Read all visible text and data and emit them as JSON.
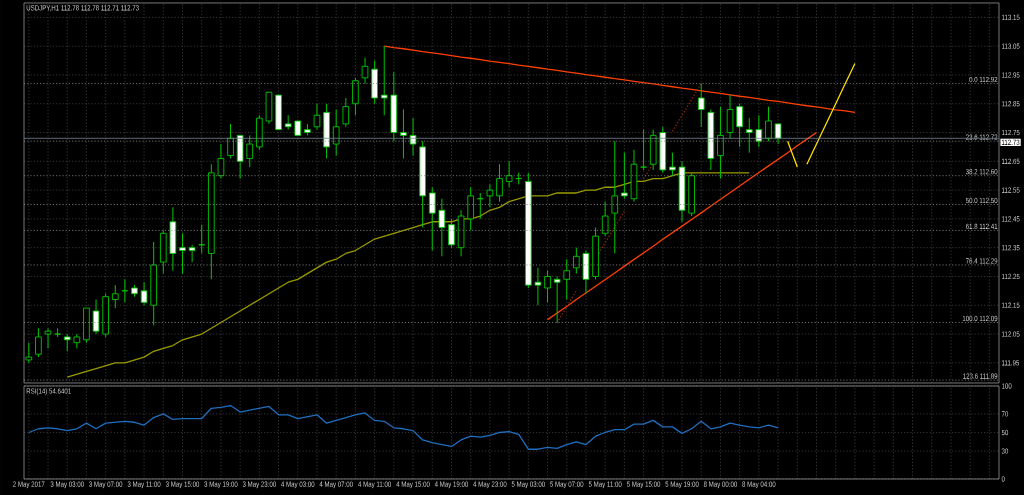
{
  "chart_data": [
    {
      "type": "candlestick",
      "title": "USDJPY,H1  112.78 112.78 112.71 112.73",
      "categories": [
        null,
        null,
        null,
        null,
        null,
        null,
        null,
        null,
        null,
        null,
        null,
        null,
        null,
        null,
        null,
        null,
        null,
        null,
        null,
        null,
        null,
        null,
        null,
        null,
        null,
        null,
        null,
        null,
        null,
        null,
        null,
        null,
        null,
        null,
        null,
        null,
        null,
        null,
        null,
        null,
        null,
        null,
        null,
        null,
        null,
        null,
        null,
        null,
        null,
        null,
        null,
        null,
        null,
        null,
        null,
        null,
        null,
        null,
        null,
        null,
        null,
        null,
        null,
        null,
        null,
        null,
        null,
        null,
        null,
        null,
        null,
        null,
        null,
        null,
        null,
        null,
        null,
        null,
        null,
        null,
        null,
        null,
        null,
        null,
        null,
        null,
        null,
        null,
        null,
        null,
        null,
        null,
        null,
        null,
        null,
        null,
        null,
        null,
        null,
        null,
        null,
        null
      ],
      "ohlc": [
        [
          111.96,
          112.02,
          111.95,
          111.97
        ],
        [
          111.98,
          112.07,
          111.97,
          112.04
        ],
        [
          112.05,
          112.07,
          112.0,
          112.06
        ],
        [
          112.05,
          112.07,
          112.04,
          112.05
        ],
        [
          112.04,
          112.05,
          111.99,
          112.03
        ],
        [
          112.02,
          112.05,
          112.0,
          112.04
        ],
        [
          112.03,
          112.14,
          112.02,
          112.14
        ],
        [
          112.13,
          112.17,
          112.05,
          112.06
        ],
        [
          112.05,
          112.19,
          112.04,
          112.18
        ],
        [
          112.17,
          112.22,
          112.14,
          112.19
        ],
        [
          112.2,
          112.24,
          112.16,
          112.2
        ],
        [
          112.21,
          112.22,
          112.18,
          112.19
        ],
        [
          112.2,
          112.23,
          112.15,
          112.16
        ],
        [
          112.15,
          112.37,
          112.08,
          112.29
        ],
        [
          112.3,
          112.41,
          112.26,
          112.4
        ],
        [
          112.44,
          112.49,
          112.27,
          112.33
        ],
        [
          112.35,
          112.4,
          112.26,
          112.34
        ],
        [
          112.35,
          112.36,
          112.3,
          112.34
        ],
        [
          112.36,
          112.43,
          112.33,
          112.36
        ],
        [
          112.33,
          112.64,
          112.24,
          112.61
        ],
        [
          112.6,
          112.71,
          112.59,
          112.66
        ],
        [
          112.67,
          112.78,
          112.66,
          112.73
        ],
        [
          112.74,
          112.74,
          112.59,
          112.65
        ],
        [
          112.66,
          112.74,
          112.63,
          112.71
        ],
        [
          112.7,
          112.81,
          112.69,
          112.8
        ],
        [
          112.79,
          112.89,
          112.78,
          112.89
        ],
        [
          112.88,
          112.88,
          112.76,
          112.76
        ],
        [
          112.78,
          112.81,
          112.76,
          112.77
        ],
        [
          112.79,
          112.79,
          112.74,
          112.74
        ],
        [
          112.76,
          112.78,
          112.74,
          112.75
        ],
        [
          112.77,
          112.85,
          112.76,
          112.81
        ],
        [
          112.82,
          112.85,
          112.66,
          112.7
        ],
        [
          112.71,
          112.83,
          112.67,
          112.77
        ],
        [
          112.78,
          112.87,
          112.77,
          112.84
        ],
        [
          112.85,
          112.94,
          112.81,
          112.93
        ],
        [
          112.94,
          113.01,
          112.92,
          112.98
        ],
        [
          112.97,
          113.0,
          112.85,
          112.87
        ],
        [
          112.88,
          113.05,
          112.81,
          112.87
        ],
        [
          112.88,
          112.96,
          112.72,
          112.75
        ],
        [
          112.75,
          112.83,
          112.66,
          112.74
        ],
        [
          112.74,
          112.8,
          112.67,
          112.71
        ],
        [
          112.7,
          112.72,
          112.42,
          112.53
        ],
        [
          112.54,
          112.56,
          112.34,
          112.47
        ],
        [
          112.48,
          112.52,
          112.32,
          112.42
        ],
        [
          112.43,
          112.45,
          112.35,
          112.36
        ],
        [
          112.35,
          112.48,
          112.32,
          112.46
        ],
        [
          112.45,
          112.56,
          112.41,
          112.53
        ],
        [
          112.52,
          112.54,
          112.45,
          112.52
        ],
        [
          112.53,
          112.57,
          112.49,
          112.55
        ],
        [
          112.53,
          112.64,
          112.51,
          112.59
        ],
        [
          112.58,
          112.65,
          112.56,
          112.6
        ],
        [
          112.59,
          112.61,
          112.57,
          112.59
        ],
        [
          112.58,
          112.61,
          112.21,
          112.22
        ],
        [
          112.23,
          112.28,
          112.15,
          112.22
        ],
        [
          112.21,
          112.27,
          112.16,
          112.25
        ],
        [
          112.24,
          112.25,
          112.09,
          112.23
        ],
        [
          112.24,
          112.31,
          112.17,
          112.27
        ],
        [
          112.28,
          112.35,
          112.26,
          112.32
        ],
        [
          112.33,
          112.34,
          112.19,
          112.24
        ],
        [
          112.25,
          112.42,
          112.24,
          112.39
        ],
        [
          112.4,
          112.51,
          112.39,
          112.46
        ],
        [
          112.47,
          112.72,
          112.33,
          112.53
        ],
        [
          112.54,
          112.68,
          112.52,
          112.53
        ],
        [
          112.52,
          112.69,
          112.51,
          112.64
        ],
        [
          112.63,
          112.76,
          112.62,
          112.63
        ],
        [
          112.64,
          112.76,
          112.62,
          112.74
        ],
        [
          112.75,
          112.77,
          112.61,
          112.62
        ],
        [
          112.63,
          112.68,
          112.6,
          112.62
        ],
        [
          112.63,
          112.65,
          112.44,
          112.48
        ],
        [
          112.47,
          112.61,
          112.46,
          112.6
        ],
        [
          112.87,
          112.92,
          112.77,
          112.83
        ],
        [
          112.82,
          112.83,
          112.62,
          112.66
        ],
        [
          112.67,
          112.84,
          112.59,
          112.74
        ],
        [
          112.75,
          112.88,
          112.73,
          112.83
        ],
        [
          112.84,
          112.85,
          112.7,
          112.77
        ],
        [
          112.76,
          112.8,
          112.68,
          112.75
        ],
        [
          112.76,
          112.81,
          112.7,
          112.72
        ],
        [
          112.73,
          112.84,
          112.72,
          112.79
        ],
        [
          112.78,
          112.78,
          112.71,
          112.73
        ],
        null,
        null,
        null,
        null,
        null,
        null,
        null,
        null,
        null,
        null,
        null,
        null,
        null,
        null,
        null,
        null,
        null,
        null,
        null,
        null,
        null,
        null,
        null
      ],
      "series": [
        {
          "type": "line",
          "color": "#9a9a00",
          "values": [
            null,
            null,
            null,
            null,
            111.9,
            111.91,
            111.92,
            111.93,
            111.94,
            111.95,
            111.95,
            111.96,
            111.97,
            111.99,
            112.0,
            112.01,
            112.03,
            112.04,
            112.05,
            112.07,
            112.09,
            112.11,
            112.13,
            112.15,
            112.17,
            112.19,
            112.21,
            112.23,
            112.24,
            112.26,
            112.28,
            112.3,
            112.31,
            112.33,
            112.34,
            112.36,
            112.38,
            112.39,
            112.4,
            112.41,
            112.42,
            112.43,
            112.44,
            112.44,
            112.44,
            112.45,
            112.45,
            112.46,
            112.48,
            112.49,
            112.51,
            112.52,
            112.53,
            112.53,
            112.53,
            112.54,
            112.54,
            112.54,
            112.55,
            112.55,
            112.56,
            112.56,
            112.57,
            112.58,
            112.58,
            112.59,
            112.59,
            112.6,
            112.61,
            112.61,
            112.61,
            112.61,
            112.61,
            112.61,
            112.61,
            112.61,
            null,
            null,
            null,
            null,
            null,
            null,
            null,
            null,
            null,
            null,
            null,
            null,
            null,
            null,
            null,
            null,
            null,
            null,
            null,
            null,
            null,
            null,
            null,
            null,
            null,
            null
          ]
        },
        {
          "type": "line",
          "color": "#ff4000",
          "values": [
            null,
            null,
            null,
            null,
            null,
            null,
            null,
            null,
            null,
            null,
            null,
            null,
            null,
            null,
            null,
            null,
            null,
            null,
            null,
            null,
            null,
            null,
            null,
            null,
            null,
            null,
            null,
            null,
            null,
            null,
            null,
            null,
            null,
            null,
            null,
            null,
            null,
            113.05,
            113.045,
            113.041,
            113.036,
            113.031,
            113.027,
            113.022,
            113.017,
            113.012,
            113.008,
            113.003,
            112.998,
            112.994,
            112.989,
            112.984,
            112.98,
            112.975,
            112.97,
            112.966,
            112.961,
            112.956,
            112.951,
            112.947,
            112.942,
            112.937,
            112.933,
            112.928,
            112.923,
            112.919,
            112.914,
            112.909,
            112.904,
            112.9,
            112.895,
            112.89,
            112.886,
            112.881,
            112.876,
            112.872,
            112.867,
            112.862,
            112.858,
            112.853,
            112.848,
            112.843,
            112.839,
            112.834,
            112.829,
            112.825,
            112.82,
            null,
            null,
            null,
            null,
            null,
            null,
            null,
            null,
            null,
            null,
            null,
            null,
            null,
            null,
            null
          ]
        },
        {
          "type": "line",
          "color": "#ff4000",
          "values": [
            null,
            null,
            null,
            null,
            null,
            null,
            null,
            null,
            null,
            null,
            null,
            null,
            null,
            null,
            null,
            null,
            null,
            null,
            null,
            null,
            null,
            null,
            null,
            null,
            null,
            null,
            null,
            null,
            null,
            null,
            null,
            null,
            null,
            null,
            null,
            null,
            null,
            null,
            null,
            null,
            null,
            null,
            null,
            null,
            null,
            null,
            null,
            null,
            null,
            null,
            null,
            null,
            null,
            null,
            112.1,
            112.123,
            112.146,
            112.17,
            112.193,
            112.216,
            112.239,
            112.262,
            112.286,
            112.309,
            112.332,
            112.355,
            112.379,
            112.402,
            112.425,
            112.448,
            112.471,
            112.495,
            112.518,
            112.541,
            112.564,
            112.588,
            112.611,
            112.634,
            112.657,
            112.68,
            112.704,
            112.727,
            112.75,
            null,
            null,
            null,
            null,
            null,
            null,
            null,
            null,
            null,
            null,
            null,
            null,
            null,
            null,
            null,
            null,
            null,
            null,
            null
          ]
        },
        {
          "type": "line",
          "color": "#ffdd00",
          "values": [
            null,
            null,
            null,
            null,
            null,
            null,
            null,
            null,
            null,
            null,
            null,
            null,
            null,
            null,
            null,
            null,
            null,
            null,
            null,
            null,
            null,
            null,
            null,
            null,
            null,
            null,
            null,
            null,
            null,
            null,
            null,
            null,
            null,
            null,
            null,
            null,
            null,
            null,
            null,
            null,
            null,
            null,
            null,
            null,
            null,
            null,
            null,
            null,
            null,
            null,
            null,
            null,
            null,
            null,
            null,
            null,
            null,
            null,
            null,
            null,
            null,
            null,
            null,
            null,
            null,
            null,
            null,
            null,
            null,
            null,
            null,
            null,
            null,
            null,
            null,
            null,
            null,
            null,
            null,
            112.72,
            112.63,
            null,
            null,
            null,
            null,
            null,
            null,
            null,
            null,
            null,
            null,
            null,
            null,
            null,
            null,
            null,
            null,
            null,
            null,
            null,
            null,
            null
          ]
        },
        {
          "type": "line",
          "color": "#ffdd00",
          "values": [
            null,
            null,
            null,
            null,
            null,
            null,
            null,
            null,
            null,
            null,
            null,
            null,
            null,
            null,
            null,
            null,
            null,
            null,
            null,
            null,
            null,
            null,
            null,
            null,
            null,
            null,
            null,
            null,
            null,
            null,
            null,
            null,
            null,
            null,
            null,
            null,
            null,
            null,
            null,
            null,
            null,
            null,
            null,
            null,
            null,
            null,
            null,
            null,
            null,
            null,
            null,
            null,
            null,
            null,
            null,
            null,
            null,
            null,
            null,
            null,
            null,
            null,
            null,
            null,
            null,
            null,
            null,
            null,
            null,
            null,
            null,
            null,
            null,
            null,
            null,
            null,
            null,
            null,
            null,
            null,
            null,
            112.64,
            112.71,
            112.78,
            112.85,
            112.92,
            112.99,
            null,
            null,
            null,
            null,
            null,
            null,
            null,
            null,
            null,
            null,
            null,
            null,
            null,
            null,
            null
          ]
        },
        {
          "type": "line",
          "color": "#a02800",
          "line_style": "dotted",
          "values": [
            null,
            null,
            null,
            null,
            null,
            null,
            null,
            null,
            null,
            null,
            null,
            null,
            null,
            null,
            null,
            null,
            null,
            null,
            null,
            null,
            null,
            null,
            null,
            null,
            null,
            null,
            null,
            null,
            null,
            null,
            null,
            null,
            null,
            null,
            null,
            null,
            null,
            null,
            null,
            null,
            null,
            null,
            null,
            null,
            null,
            null,
            null,
            null,
            null,
            null,
            null,
            null,
            null,
            null,
            null,
            112.09,
            112.145,
            112.201,
            null,
            112.311,
            112.367,
            112.422,
            112.477,
            null,
            112.588,
            112.643,
            null,
            112.754,
            112.809,
            112.865,
            112.92,
            null,
            null,
            null,
            null,
            null,
            null,
            null,
            null,
            null,
            null,
            null,
            null,
            null,
            null,
            null,
            null,
            null,
            null,
            null,
            null,
            null,
            null,
            null,
            null,
            null,
            null,
            null,
            null,
            null,
            null,
            null
          ]
        }
      ],
      "ylim": [
        111.88,
        113.2
      ],
      "yticks": [
        111.95,
        112.05,
        112.15,
        112.25,
        112.35,
        112.45,
        112.55,
        112.65,
        112.75,
        112.85,
        112.95,
        113.05,
        113.15
      ],
      "ref_lines": [
        {
          "axis": "y",
          "value": 112.92,
          "label": "0.0 112.92",
          "color": "#8c8c8c",
          "line_style": "dotted"
        },
        {
          "axis": "y",
          "value": 112.72,
          "label": "23.6 112.72",
          "color": "#8c8c8c",
          "line_style": "dotted"
        },
        {
          "axis": "y",
          "value": 112.6,
          "label": "38.2 112.60",
          "color": "#8c8c8c",
          "line_style": "dotted"
        },
        {
          "axis": "y",
          "value": 112.5,
          "label": "50.0 112.50",
          "color": "#8c8c8c",
          "line_style": "dotted"
        },
        {
          "axis": "y",
          "value": 112.41,
          "label": "61.8 112.41",
          "color": "#8c8c8c",
          "line_style": "dotted"
        },
        {
          "axis": "y",
          "value": 112.29,
          "label": "76.4 112.29",
          "color": "#8c8c8c",
          "line_style": "dotted"
        },
        {
          "axis": "y",
          "value": 112.09,
          "label": "100.0 112.09",
          "color": "#8c8c8c",
          "line_style": "dotted"
        },
        {
          "axis": "y",
          "value": 111.89,
          "label": "123.6 111.89",
          "color": "#8c8c8c",
          "line_style": "dotted"
        },
        {
          "axis": "y",
          "value": 112.73,
          "label": "112.73",
          "color": "#778899",
          "line_style": "solid"
        }
      ],
      "grid": true
    },
    {
      "type": "line",
      "title": "RSI(14) 54.6401",
      "categories": [
        "2 May 2017",
        null,
        null,
        null,
        "3 May 03:00",
        null,
        null,
        null,
        "3 May 07:00",
        null,
        null,
        null,
        "3 May 11:00",
        null,
        null,
        null,
        "3 May 15:00",
        null,
        null,
        null,
        "3 May 19:00",
        null,
        null,
        null,
        "3 May 23:00",
        null,
        null,
        null,
        "4 May 03:00",
        null,
        null,
        null,
        "4 May 07:00",
        null,
        null,
        null,
        "4 May 11:00",
        null,
        null,
        null,
        "4 May 15:00",
        null,
        null,
        null,
        "4 May 19:00",
        null,
        null,
        null,
        "4 May 23:00",
        null,
        null,
        null,
        "5 May 03:00",
        null,
        null,
        null,
        "5 May 07:00",
        null,
        null,
        null,
        "5 May 11:00",
        null,
        null,
        null,
        "5 May 15:00",
        null,
        null,
        null,
        "5 May 19:00",
        null,
        null,
        null,
        "8 May 00:00",
        null,
        null,
        null,
        "8 May 04:00",
        null,
        null,
        null,
        null,
        null,
        null,
        null,
        null,
        null,
        null,
        null,
        null,
        null,
        null,
        null,
        null,
        null,
        null,
        null,
        null,
        null,
        null,
        null,
        null,
        null
      ],
      "series": [
        {
          "color": "#1f6fbf",
          "values": [
            50,
            54,
            55,
            54,
            52,
            54,
            60,
            54,
            60,
            61,
            62,
            61,
            58,
            66,
            70,
            64,
            65,
            65,
            65,
            76,
            77,
            79,
            72,
            74,
            76,
            78,
            69,
            69,
            65,
            67,
            69,
            60,
            63,
            66,
            69,
            71,
            63,
            62,
            55,
            54,
            52,
            42,
            39,
            37,
            35,
            42,
            46,
            45,
            47,
            50,
            51,
            48,
            32,
            32,
            34,
            33,
            37,
            40,
            37,
            46,
            50,
            53,
            53,
            59,
            59,
            63,
            56,
            56,
            49,
            54,
            62,
            54,
            56,
            60,
            58,
            56,
            55,
            58,
            55,
            null,
            null,
            null,
            null,
            null,
            null,
            null,
            null,
            null,
            null,
            null,
            null,
            null,
            null,
            null,
            null,
            null,
            null,
            null,
            null,
            null,
            null,
            null
          ]
        }
      ],
      "ylim": [
        0,
        100
      ],
      "yticks": [
        0,
        30,
        50,
        70,
        100
      ],
      "grid": true
    }
  ]
}
